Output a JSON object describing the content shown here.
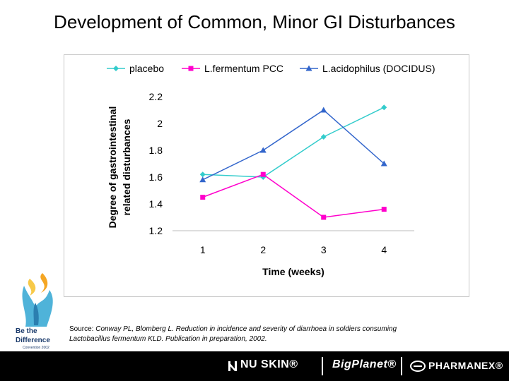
{
  "slide": {
    "title": "Development of Common, Minor GI Disturbances",
    "source_label": "Source: ",
    "source_text": "Conway PL, Blomberg L. Reduction in incidence and severity of diarrhoea in soldiers consuming Lactobacillus fermentum KLD. Publication in preparation, 2002."
  },
  "logo_left": {
    "line1": "Be the",
    "line2": "Difference",
    "line3": "Convention 2002"
  },
  "footer": {
    "brands": [
      "NU SKIN®",
      "BigPlanet®",
      "PHARMANEX®"
    ]
  },
  "chart_data": {
    "type": "line",
    "x": [
      1,
      2,
      3,
      4
    ],
    "xlabel": "Time (weeks)",
    "ylabel_lines": [
      "Degree of gastrointestinal",
      "related disturbances"
    ],
    "ylim": [
      1.2,
      2.2
    ],
    "yticks": [
      1.2,
      1.4,
      1.6,
      1.8,
      2,
      2.2
    ],
    "legend_position": "top",
    "series": [
      {
        "name": "placebo",
        "color": "#33CCCC",
        "marker": "diamond",
        "values": [
          1.62,
          1.6,
          1.9,
          2.12
        ]
      },
      {
        "name": "L.fermentum PCC",
        "color": "#FF00CC",
        "marker": "square",
        "values": [
          1.45,
          1.62,
          1.3,
          1.36
        ]
      },
      {
        "name": "L.acidophilus (DOCIDUS)",
        "color": "#3366CC",
        "marker": "triangle",
        "values": [
          1.58,
          1.8,
          2.1,
          1.7
        ]
      }
    ]
  }
}
